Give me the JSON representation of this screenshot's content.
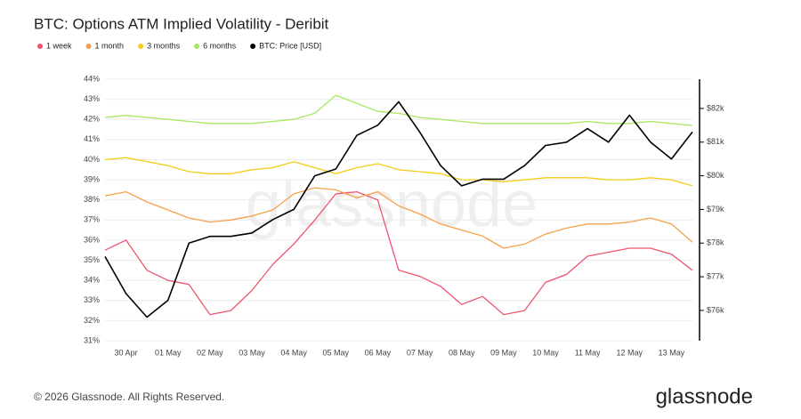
{
  "chart_data": {
    "type": "line",
    "title": "BTC: Options ATM Implied Volatility - Deribit",
    "watermark": "glassnode",
    "footer": "© 2026 Glassnode. All Rights Reserved.",
    "brand": "glassnode",
    "categories": [
      null,
      "30 Apr",
      null,
      "01 May",
      null,
      "02 May",
      null,
      "03 May",
      null,
      "04 May",
      null,
      "05 May",
      null,
      "06 May",
      null,
      "07 May",
      null,
      "08 May",
      null,
      "09 May",
      null,
      "10 May",
      null,
      "11 May",
      null,
      "12 May",
      null,
      "13 May",
      null
    ],
    "ylim": [
      31,
      44
    ],
    "yticks": [
      {
        "value": 31,
        "label": "31%"
      },
      {
        "value": 32,
        "label": "32%"
      },
      {
        "value": 33,
        "label": "33%"
      },
      {
        "value": 34,
        "label": "34%"
      },
      {
        "value": 35,
        "label": "35%"
      },
      {
        "value": 36,
        "label": "36%"
      },
      {
        "value": 37,
        "label": "37%"
      },
      {
        "value": 38,
        "label": "38%"
      },
      {
        "value": 39,
        "label": "39%"
      },
      {
        "value": 40,
        "label": "40%"
      },
      {
        "value": 41,
        "label": "41%"
      },
      {
        "value": 42,
        "label": "42%"
      },
      {
        "value": 43,
        "label": "43%"
      },
      {
        "value": 44,
        "label": "44%"
      }
    ],
    "y2lim": [
      75100,
      82870
    ],
    "y2ticks": [
      {
        "value": 76000,
        "label": "$76k"
      },
      {
        "value": 77000,
        "label": "$77k"
      },
      {
        "value": 78000,
        "label": "$78k"
      },
      {
        "value": 79000,
        "label": "$79k"
      },
      {
        "value": 80000,
        "label": "$80k"
      },
      {
        "value": 81000,
        "label": "$81k"
      },
      {
        "value": 82000,
        "label": "$82k"
      }
    ],
    "grid": true,
    "series": [
      {
        "name": "1 week",
        "color": "#f0546f",
        "values": [
          35.5,
          36.0,
          34.5,
          34.0,
          33.8,
          32.3,
          32.5,
          33.5,
          34.8,
          35.8,
          37.0,
          38.3,
          38.4,
          38.0,
          34.5,
          34.2,
          33.7,
          32.8,
          33.2,
          32.3,
          32.5,
          33.9,
          34.3,
          35.2,
          35.4,
          35.6,
          35.6,
          35.3,
          34.5
        ]
      },
      {
        "name": "1 month",
        "color": "#f7a04a",
        "values": [
          38.2,
          38.4,
          37.9,
          37.5,
          37.1,
          36.9,
          37.0,
          37.2,
          37.5,
          38.3,
          38.6,
          38.5,
          38.1,
          38.4,
          37.7,
          37.3,
          36.8,
          36.5,
          36.2,
          35.6,
          35.8,
          36.3,
          36.6,
          36.8,
          36.8,
          36.9,
          37.1,
          36.8,
          35.9
        ]
      },
      {
        "name": "3 months",
        "color": "#f5cc19",
        "values": [
          40.0,
          40.1,
          39.9,
          39.7,
          39.4,
          39.3,
          39.3,
          39.5,
          39.6,
          39.9,
          39.6,
          39.3,
          39.6,
          39.8,
          39.5,
          39.4,
          39.3,
          39.0,
          39.0,
          38.9,
          39.0,
          39.1,
          39.1,
          39.1,
          39.0,
          39.0,
          39.1,
          39.0,
          38.7
        ]
      },
      {
        "name": "6 months",
        "color": "#a8e860",
        "values": [
          42.1,
          42.2,
          42.1,
          42.0,
          41.9,
          41.8,
          41.8,
          41.8,
          41.9,
          42.0,
          42.3,
          43.2,
          42.8,
          42.4,
          42.3,
          42.1,
          42.0,
          41.9,
          41.8,
          41.8,
          41.8,
          41.8,
          41.8,
          41.9,
          41.8,
          41.8,
          41.9,
          41.8,
          41.7
        ]
      },
      {
        "name": "BTC: Price [USD]",
        "color": "#000000",
        "axis": "y2",
        "values": [
          77600,
          76500,
          75800,
          76300,
          78000,
          78200,
          78200,
          78300,
          78700,
          79000,
          80000,
          80200,
          81200,
          81500,
          82200,
          81300,
          80300,
          79700,
          79900,
          79900,
          80300,
          80900,
          81000,
          81400,
          81000,
          81800,
          81000,
          80500,
          81300
        ]
      }
    ]
  }
}
